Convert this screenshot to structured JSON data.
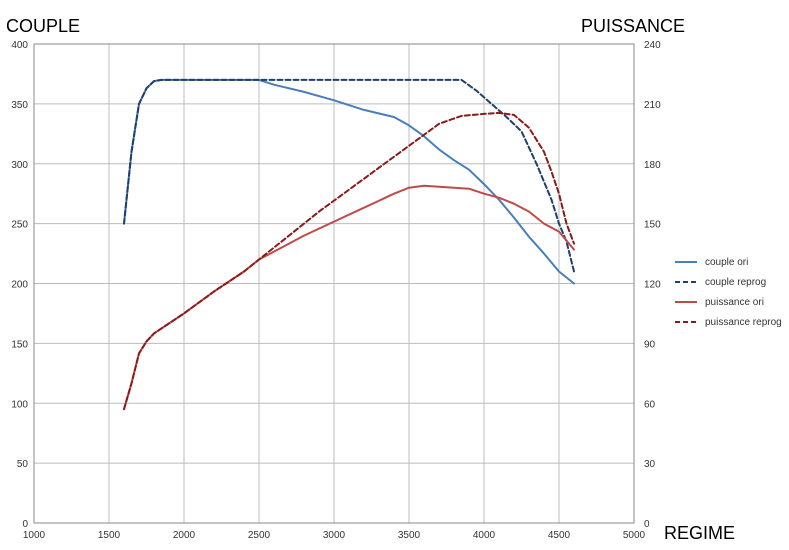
{
  "chart_data": {
    "type": "line",
    "ylabel": "COUPLE",
    "y2label": "PUISSANCE",
    "xlabel": "REGIME",
    "xlim": [
      1000,
      5000
    ],
    "xticks": [
      1000,
      1500,
      2000,
      2500,
      3000,
      3500,
      4000,
      4500,
      5000
    ],
    "ylim": [
      0,
      400
    ],
    "yticks": [
      0,
      50,
      100,
      150,
      200,
      250,
      300,
      350,
      400
    ],
    "y2lim": [
      0,
      240
    ],
    "y2ticks": [
      0,
      30,
      60,
      90,
      120,
      150,
      180,
      210,
      240
    ],
    "grid": "vertical and horizontal",
    "legend_position": "right",
    "series": [
      {
        "name": "couple ori",
        "axis": "left",
        "color": "#4a7ebb",
        "dash": false,
        "points": [
          [
            1600,
            250
          ],
          [
            1650,
            310
          ],
          [
            1700,
            350
          ],
          [
            1750,
            363
          ],
          [
            1800,
            369
          ],
          [
            1850,
            370
          ],
          [
            2000,
            370
          ],
          [
            2200,
            370
          ],
          [
            2500,
            370
          ],
          [
            2600,
            366
          ],
          [
            2800,
            360
          ],
          [
            3000,
            353
          ],
          [
            3200,
            345
          ],
          [
            3400,
            339
          ],
          [
            3500,
            332
          ],
          [
            3600,
            323
          ],
          [
            3700,
            312
          ],
          [
            3800,
            303
          ],
          [
            3900,
            295
          ],
          [
            4000,
            283
          ],
          [
            4100,
            270
          ],
          [
            4200,
            255
          ],
          [
            4300,
            239
          ],
          [
            4400,
            225
          ],
          [
            4500,
            210
          ],
          [
            4600,
            200
          ]
        ]
      },
      {
        "name": "couple reprog",
        "axis": "left",
        "color": "#1f3f6e",
        "dash": true,
        "points": [
          [
            1600,
            250
          ],
          [
            1650,
            310
          ],
          [
            1700,
            350
          ],
          [
            1750,
            363
          ],
          [
            1800,
            369
          ],
          [
            1850,
            370
          ],
          [
            2000,
            370
          ],
          [
            2500,
            370
          ],
          [
            3000,
            370
          ],
          [
            3500,
            370
          ],
          [
            3850,
            370
          ],
          [
            3950,
            361
          ],
          [
            4050,
            350
          ],
          [
            4150,
            339
          ],
          [
            4250,
            327
          ],
          [
            4350,
            300
          ],
          [
            4450,
            270
          ],
          [
            4500,
            250
          ],
          [
            4550,
            235
          ],
          [
            4600,
            210
          ]
        ]
      },
      {
        "name": "puissance ori",
        "axis": "right",
        "color": "#be4b48",
        "dash": false,
        "points": [
          [
            1600,
            57
          ],
          [
            1650,
            70
          ],
          [
            1700,
            85
          ],
          [
            1750,
            91
          ],
          [
            1800,
            95
          ],
          [
            1900,
            100
          ],
          [
            2000,
            105
          ],
          [
            2200,
            116
          ],
          [
            2400,
            126
          ],
          [
            2500,
            132
          ],
          [
            2600,
            136
          ],
          [
            2800,
            144
          ],
          [
            3000,
            151
          ],
          [
            3200,
            158
          ],
          [
            3400,
            165
          ],
          [
            3500,
            168
          ],
          [
            3600,
            169
          ],
          [
            3700,
            168.5
          ],
          [
            3800,
            168
          ],
          [
            3900,
            167.5
          ],
          [
            4000,
            165
          ],
          [
            4100,
            163
          ],
          [
            4200,
            160
          ],
          [
            4300,
            156
          ],
          [
            4400,
            150
          ],
          [
            4500,
            146
          ],
          [
            4600,
            137
          ]
        ]
      },
      {
        "name": "puissance reprog",
        "axis": "right",
        "color": "#8b1a1a",
        "dash": true,
        "points": [
          [
            1600,
            57
          ],
          [
            1650,
            70
          ],
          [
            1700,
            85
          ],
          [
            1750,
            91
          ],
          [
            1800,
            95
          ],
          [
            1900,
            100
          ],
          [
            2000,
            105
          ],
          [
            2200,
            116
          ],
          [
            2400,
            126
          ],
          [
            2500,
            132
          ],
          [
            2700,
            144
          ],
          [
            2900,
            156
          ],
          [
            3100,
            167
          ],
          [
            3300,
            178
          ],
          [
            3500,
            189
          ],
          [
            3700,
            200
          ],
          [
            3850,
            204
          ],
          [
            4000,
            205
          ],
          [
            4100,
            205.5
          ],
          [
            4200,
            204.5
          ],
          [
            4300,
            198
          ],
          [
            4400,
            186
          ],
          [
            4450,
            176
          ],
          [
            4500,
            165
          ],
          [
            4550,
            150
          ],
          [
            4600,
            140
          ]
        ]
      }
    ]
  }
}
